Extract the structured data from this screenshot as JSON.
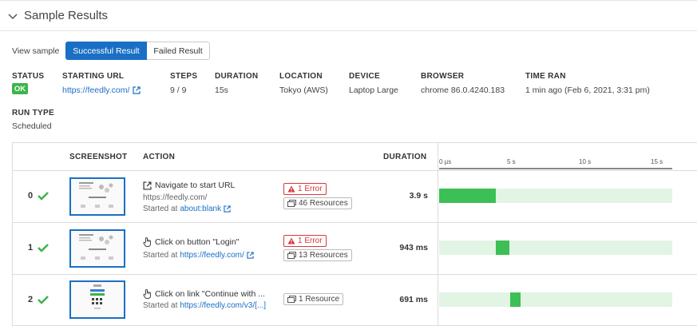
{
  "header": {
    "title": "Sample Results",
    "chevron_icon": "chevron-down-icon"
  },
  "view_sample": {
    "label": "View sample",
    "options": [
      "Successful Result",
      "Failed Result"
    ],
    "selected": "Successful Result"
  },
  "meta": {
    "status": {
      "label": "STATUS",
      "value": "OK"
    },
    "starting_url": {
      "label": "STARTING URL",
      "value": "https://feedly.com/"
    },
    "steps": {
      "label": "STEPS",
      "value": "9 / 9"
    },
    "duration": {
      "label": "DURATION",
      "value": "15s"
    },
    "location": {
      "label": "LOCATION",
      "value": "Tokyo (AWS)"
    },
    "device": {
      "label": "DEVICE",
      "value": "Laptop Large"
    },
    "browser": {
      "label": "BROWSER",
      "value": "chrome 86.0.4240.183"
    },
    "time_ran": {
      "label": "TIME RAN",
      "value": "1 min ago (Feb 6, 2021, 3:31 pm)"
    },
    "run_type": {
      "label": "RUN TYPE",
      "value": "Scheduled"
    }
  },
  "table": {
    "columns": {
      "screenshot": "SCREENSHOT",
      "action": "ACTION",
      "duration": "DURATION"
    },
    "timeline_ticks": [
      "0 µs",
      "5 s",
      "10 s",
      "15 s"
    ],
    "timeline_max_s": 16,
    "rows": [
      {
        "index": "0",
        "action_title": "Navigate to start URL",
        "action_url": "https://feedly.com/",
        "started_prefix": "Started at",
        "started_link": "about:blank",
        "error": "1 Error",
        "resources": "46 Resources",
        "duration": "3.9 s",
        "bar_start_s": 0,
        "bar_duration_s": 3.9
      },
      {
        "index": "1",
        "action_title": "Click on button \"Login\"",
        "action_url": "",
        "started_prefix": "Started at",
        "started_link": "https://feedly.com/",
        "error": "1 Error",
        "resources": "13 Resources",
        "duration": "943 ms",
        "bar_start_s": 3.9,
        "bar_duration_s": 0.943
      },
      {
        "index": "2",
        "action_title": "Click on link \"Continue with ...",
        "action_url": "",
        "started_prefix": "Started at",
        "started_link": "https://feedly.com/v3/[...]",
        "error": "",
        "resources": "1 Resource",
        "duration": "691 ms",
        "bar_start_s": 4.9,
        "bar_duration_s": 0.691
      }
    ]
  },
  "colors": {
    "accent": "#1a6fc4",
    "success": "#3cb54a",
    "error": "#d9363e",
    "track": "#e2f4e4"
  }
}
